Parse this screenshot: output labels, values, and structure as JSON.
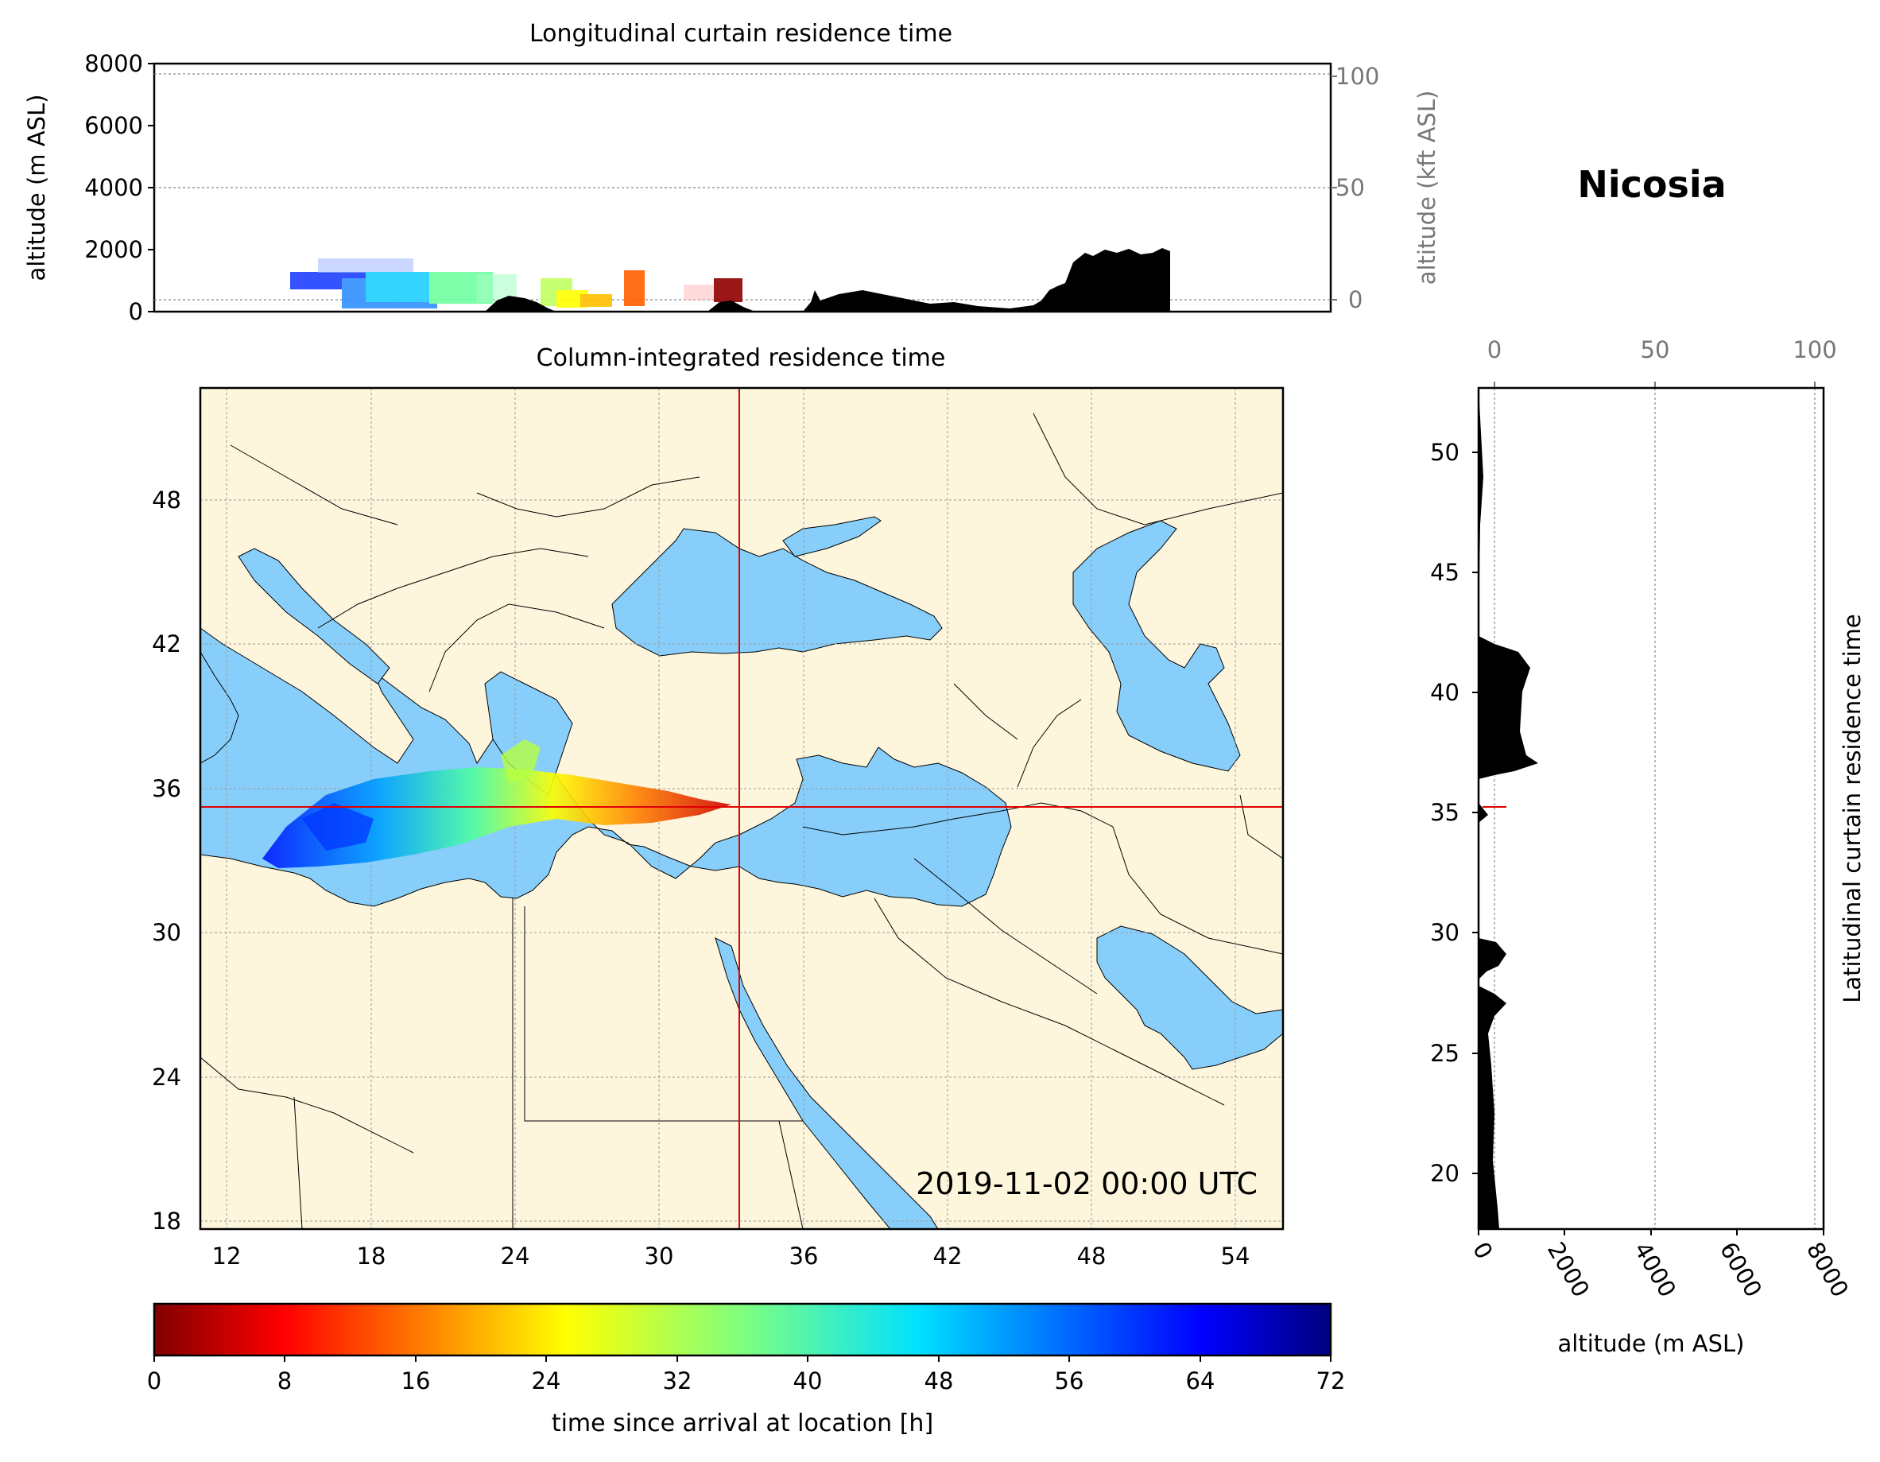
{
  "location_title": "Nicosia",
  "timestamp": "2019-11-02 00:00 UTC",
  "top_panel": {
    "title": "Longitudinal curtain residence time",
    "ylabel_left": "altitude (m ASL)",
    "ylabel_right": "altitude (kft ASL)",
    "left_ticks": [
      "0",
      "2000",
      "4000",
      "6000",
      "8000"
    ],
    "right_ticks": [
      "0",
      "50",
      "100"
    ]
  },
  "map_panel": {
    "title": "Column-integrated residence time",
    "lon_ticks": [
      "12",
      "18",
      "24",
      "30",
      "36",
      "42",
      "48",
      "54"
    ],
    "lat_ticks": [
      "18",
      "24",
      "30",
      "36",
      "42",
      "48"
    ],
    "crosshair": {
      "lon": 33.4,
      "lat": 35.2
    },
    "land_color": "#fdf5dc",
    "sea_color": "#87cefa",
    "crosshair_color": "#e00000"
  },
  "side_panel": {
    "ylabel_right": "Latitudinal curtain residence time",
    "xlabel": "altitude (m ASL)",
    "bottom_ticks": [
      "0",
      "2000",
      "4000",
      "6000",
      "8000"
    ],
    "top_ticks": [
      "0",
      "50",
      "100"
    ],
    "lat_ticks": [
      "20",
      "25",
      "30",
      "35",
      "40",
      "45",
      "50"
    ]
  },
  "colorbar": {
    "label": "time since arrival at location [h]",
    "ticks": [
      "0",
      "8",
      "16",
      "24",
      "32",
      "40",
      "48",
      "56",
      "64",
      "72"
    ],
    "colormap": "jet_r"
  }
}
